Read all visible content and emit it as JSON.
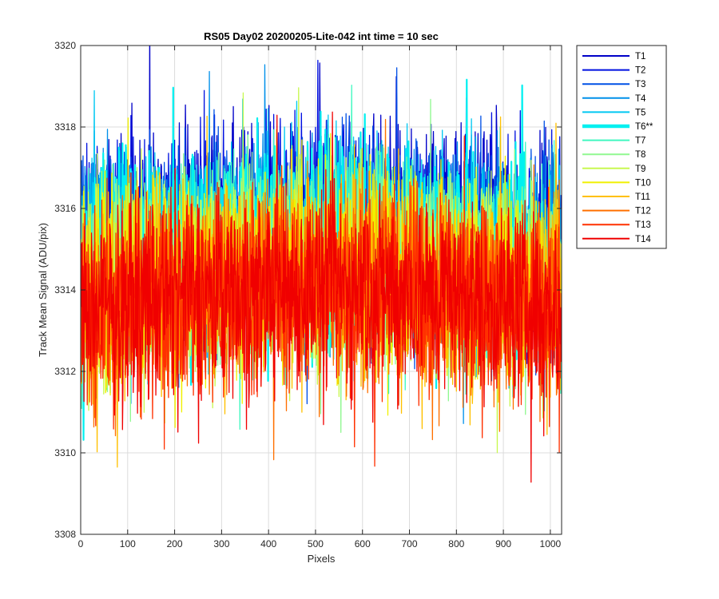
{
  "chart_data": {
    "type": "line",
    "title": "RS05 Day02 20200205-Lite-042 int time = 10 sec",
    "xlabel": "Pixels",
    "ylabel": "Track Mean Signal (ADU/pix)",
    "xlim": [
      0,
      1024
    ],
    "ylim": [
      3308,
      3320
    ],
    "xticks": [
      "0",
      "100",
      "200",
      "300",
      "400",
      "500",
      "600",
      "700",
      "800",
      "900",
      "1000"
    ],
    "yticks": [
      "3308",
      "3310",
      "3312",
      "3314",
      "3316",
      "3318",
      "3320"
    ],
    "grid": true,
    "legend_position": "outside-top-right",
    "n_pixels": 1024,
    "noise_peak_to_peak": 5,
    "series": [
      {
        "name": "T1",
        "color": "#0000C8",
        "mean": 3315.5,
        "highlight": false
      },
      {
        "name": "T2",
        "color": "#0010E0",
        "mean": 3315.3,
        "highlight": false
      },
      {
        "name": "T3",
        "color": "#0050E6",
        "mean": 3315.2,
        "highlight": false
      },
      {
        "name": "T4",
        "color": "#0090EA",
        "mean": 3315.0,
        "highlight": false
      },
      {
        "name": "T5",
        "color": "#00C8F2",
        "mean": 3315.1,
        "highlight": false
      },
      {
        "name": "T6**",
        "color": "#00F0F0",
        "mean": 3314.9,
        "highlight": true
      },
      {
        "name": "T7",
        "color": "#40F8C0",
        "mean": 3314.7,
        "highlight": false
      },
      {
        "name": "T8",
        "color": "#90F890",
        "mean": 3314.5,
        "highlight": false
      },
      {
        "name": "T9",
        "color": "#C8F850",
        "mean": 3314.4,
        "highlight": false
      },
      {
        "name": "T10",
        "color": "#F0F000",
        "mean": 3314.3,
        "highlight": false
      },
      {
        "name": "T11",
        "color": "#FFC000",
        "mean": 3314.1,
        "highlight": false
      },
      {
        "name": "T12",
        "color": "#FF7000",
        "mean": 3313.9,
        "highlight": false
      },
      {
        "name": "T13",
        "color": "#FF3000",
        "mean": 3313.7,
        "highlight": false
      },
      {
        "name": "T14",
        "color": "#F00000",
        "mean": 3313.8,
        "highlight": false
      }
    ]
  }
}
